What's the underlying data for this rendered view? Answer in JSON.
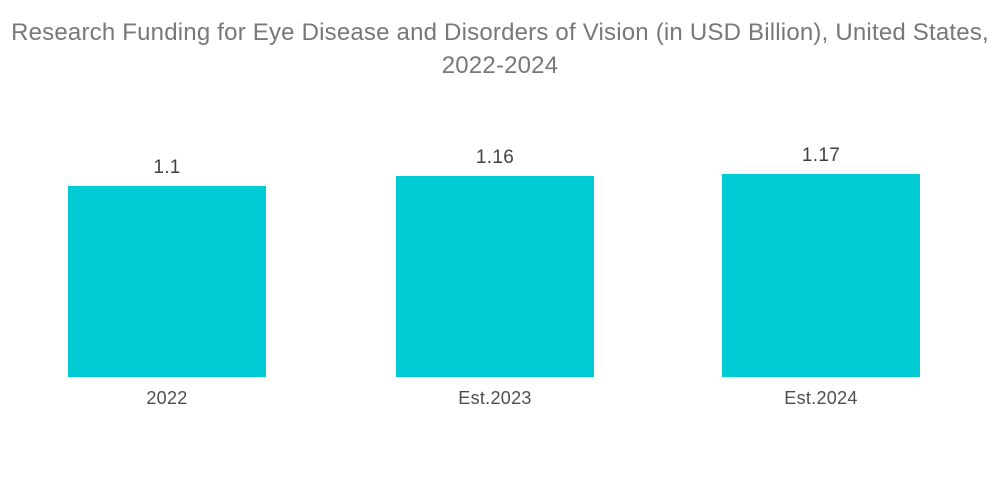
{
  "title": {
    "lines": [
      "Research Funding for Eye Disease and Disorders of Vision (in USD Billion), United States,",
      "2022-2024"
    ]
  },
  "chart_data": {
    "type": "bar",
    "title": "Research Funding for Eye Disease and Disorders of Vision (in USD Billion), United States, 2022-2024",
    "categories": [
      "2022",
      "Est.2023",
      "Est.2024"
    ],
    "values": [
      1.1,
      1.16,
      1.17
    ],
    "value_labels": [
      "1.1",
      "1.16",
      "1.17"
    ],
    "series_name": "Research Funding (USD Billion)",
    "xlabel": "",
    "ylabel": "",
    "ylim": [
      0,
      1.3
    ],
    "grid": false,
    "legend": false,
    "axes_visible": false,
    "bar_color": "#00CAD4",
    "title_color": "#77787B",
    "label_color": "#414042",
    "background_color": "#FFFFFF"
  }
}
